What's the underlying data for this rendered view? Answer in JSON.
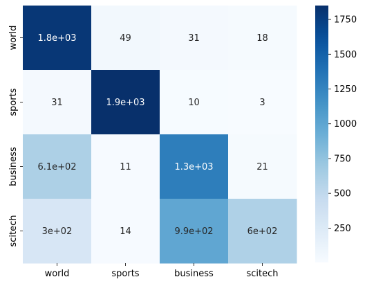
{
  "chart_data": {
    "type": "heatmap",
    "title": "",
    "xlabel": "",
    "ylabel": "",
    "x_categories": [
      "world",
      "sports",
      "business",
      "scitech"
    ],
    "y_categories": [
      "world",
      "sports",
      "business",
      "scitech"
    ],
    "values": [
      [
        1800,
        49,
        31,
        18
      ],
      [
        31,
        1900,
        10,
        3
      ],
      [
        610,
        11,
        1300,
        21
      ],
      [
        300,
        14,
        990,
        600
      ]
    ],
    "cell_labels": [
      [
        "1.8e+03",
        "49",
        "31",
        "18"
      ],
      [
        "31",
        "1.9e+03",
        "10",
        "3"
      ],
      [
        "6.1e+02",
        "11",
        "1.3e+03",
        "21"
      ],
      [
        "3e+02",
        "14",
        "9.9e+02",
        "6e+02"
      ]
    ],
    "colormap": "Blues",
    "value_range": [
      3,
      1850
    ],
    "colorbar": {
      "ticks": [
        250,
        500,
        750,
        1000,
        1250,
        1500,
        1750
      ],
      "tick_labels": [
        "250",
        "500",
        "750",
        "1000",
        "1250",
        "1500",
        "1750"
      ]
    },
    "grid": false
  }
}
